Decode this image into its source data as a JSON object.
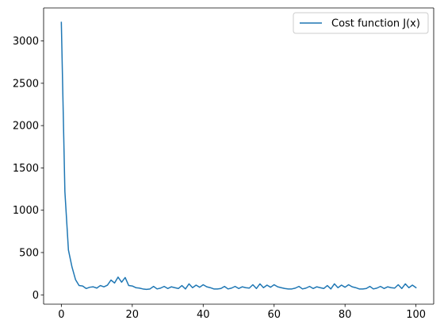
{
  "chart_data": {
    "type": "line",
    "title": "",
    "xlabel": "",
    "ylabel": "",
    "xlim": [
      -5,
      105
    ],
    "ylim": [
      -110,
      3390
    ],
    "xticks": [
      0,
      20,
      40,
      60,
      80,
      100
    ],
    "yticks": [
      0,
      500,
      1000,
      1500,
      2000,
      2500,
      3000
    ],
    "grid": false,
    "legend_position": "top-right",
    "series": [
      {
        "name": "Cost function J(x)",
        "color": "#1f77b4",
        "x": [
          0,
          1,
          2,
          3,
          4,
          5,
          6,
          7,
          8,
          9,
          10,
          11,
          12,
          13,
          14,
          15,
          16,
          17,
          18,
          19,
          20,
          21,
          22,
          23,
          24,
          25,
          26,
          27,
          28,
          29,
          30,
          31,
          32,
          33,
          34,
          35,
          36,
          37,
          38,
          39,
          40,
          41,
          42,
          43,
          44,
          45,
          46,
          47,
          48,
          49,
          50,
          51,
          52,
          53,
          54,
          55,
          56,
          57,
          58,
          59,
          60,
          61,
          62,
          63,
          64,
          65,
          66,
          67,
          68,
          69,
          70,
          71,
          72,
          73,
          74,
          75,
          76,
          77,
          78,
          79,
          80,
          81,
          82,
          83,
          84,
          85,
          86,
          87,
          88,
          89,
          90,
          91,
          92,
          93,
          94,
          95,
          96,
          97,
          98,
          99,
          100
        ],
        "y": [
          3220,
          1220,
          530,
          330,
          180,
          110,
          105,
          75,
          90,
          95,
          80,
          110,
          95,
          115,
          175,
          140,
          210,
          150,
          205,
          110,
          105,
          85,
          80,
          70,
          65,
          70,
          100,
          70,
          80,
          100,
          75,
          95,
          85,
          75,
          110,
          70,
          130,
          85,
          115,
          90,
          120,
          95,
          85,
          70,
          70,
          75,
          100,
          70,
          80,
          100,
          75,
          95,
          85,
          80,
          120,
          75,
          130,
          85,
          115,
          90,
          120,
          95,
          85,
          75,
          70,
          70,
          80,
          100,
          70,
          80,
          100,
          75,
          95,
          85,
          75,
          110,
          70,
          130,
          85,
          115,
          90,
          120,
          95,
          85,
          70,
          70,
          75,
          100,
          70,
          80,
          100,
          75,
          95,
          85,
          80,
          120,
          75,
          130,
          85,
          115,
          85
        ]
      }
    ]
  }
}
